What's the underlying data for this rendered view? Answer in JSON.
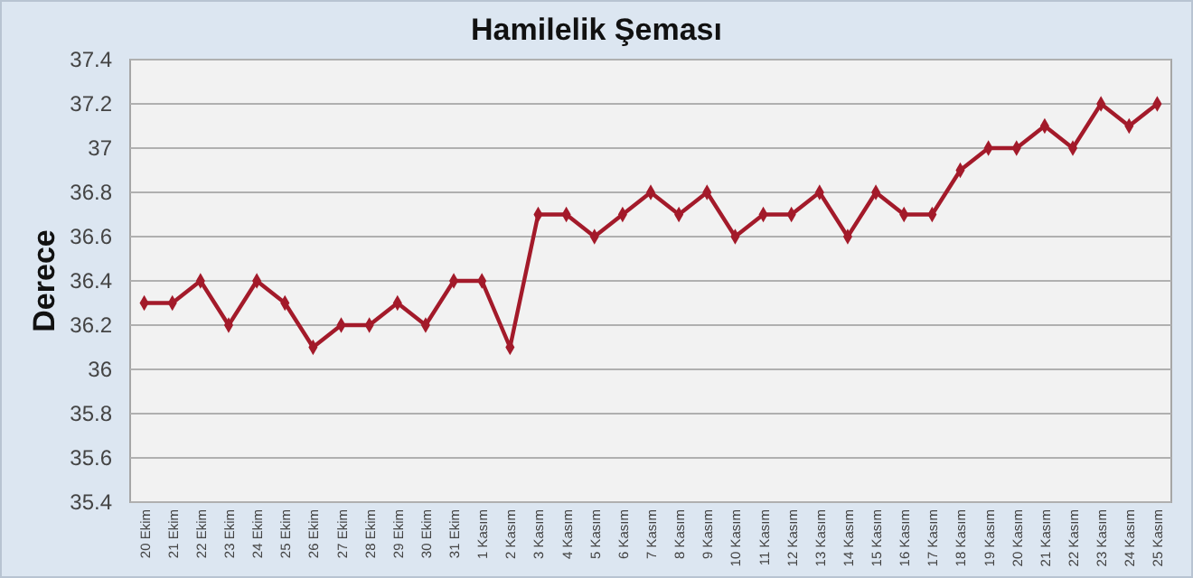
{
  "chart_data": {
    "type": "line",
    "title": "Hamilelik Şeması",
    "ylabel": "Derece",
    "categories": [
      "20 Ekim",
      "21 Ekim",
      "22 Ekim",
      "23 Ekim",
      "24 Ekim",
      "25 Ekim",
      "26 Ekim",
      "27 Ekim",
      "28 Ekim",
      "29 Ekim",
      "30 Ekim",
      "31 Ekim",
      "1 Kasım",
      "2 Kasım",
      "3 Kasım",
      "4 Kasım",
      "5 Kasım",
      "6 Kasım",
      "7 Kasım",
      "8 Kasım",
      "9 Kasım",
      "10 Kasım",
      "11 Kasım",
      "12 Kasım",
      "13 Kasım",
      "14 Kasım",
      "15 Kasım",
      "16 Kasım",
      "17 Kasım",
      "18 Kasım",
      "19 Kasım",
      "20 Kasım",
      "21 Kasım",
      "22 Kasım",
      "23 Kasım",
      "24 Kasım",
      "25 Kasım"
    ],
    "series": [
      {
        "color": "#a31a2a",
        "values": [
          36.3,
          36.3,
          36.4,
          36.2,
          36.4,
          36.3,
          36.1,
          36.2,
          36.2,
          36.3,
          36.2,
          36.4,
          36.4,
          36.1,
          36.7,
          36.7,
          36.6,
          36.7,
          36.8,
          36.7,
          36.8,
          36.6,
          36.7,
          36.7,
          36.8,
          36.6,
          36.8,
          36.7,
          36.7,
          36.9,
          37.0,
          37.0,
          37.1,
          37.0,
          37.2,
          37.1,
          37.2
        ]
      }
    ],
    "ylim": [
      35.4,
      37.4
    ],
    "yticks": [
      35.4,
      35.6,
      35.8,
      36,
      36.2,
      36.4,
      36.6,
      36.8,
      37,
      37.2,
      37.4
    ],
    "grid": "y",
    "marker": "diamond",
    "line_style": "solid"
  }
}
